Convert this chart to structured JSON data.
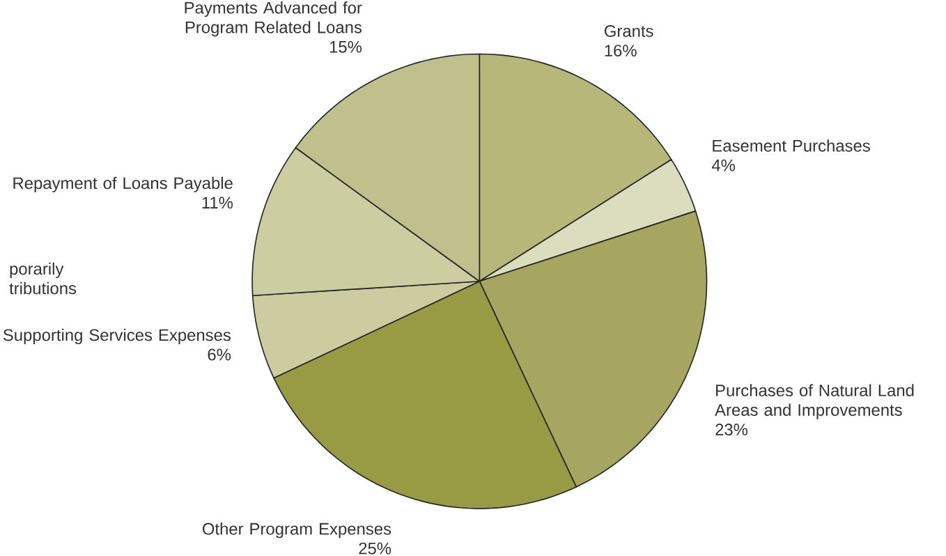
{
  "chart_data": {
    "type": "pie",
    "categories": [
      "Grants",
      "Easement Purchases",
      "Purchases of Natural Land Areas and Improvements",
      "Other Program Expenses",
      "Supporting Services Expenses",
      "Repayment of Loans Payable",
      "Payments Advanced for Program Related Loans"
    ],
    "values": [
      16,
      4,
      23,
      25,
      6,
      11,
      15
    ],
    "value_labels": [
      "16%",
      "4%",
      "23%",
      "25%",
      "6%",
      "11%",
      "15%"
    ],
    "colors": [
      "#b7b77a",
      "#dcdcbe",
      "#a6a660",
      "#989a44",
      "#cccca0",
      "#cdcda2",
      "#c0c08c"
    ],
    "annotations": [
      "porarily tributions"
    ]
  }
}
